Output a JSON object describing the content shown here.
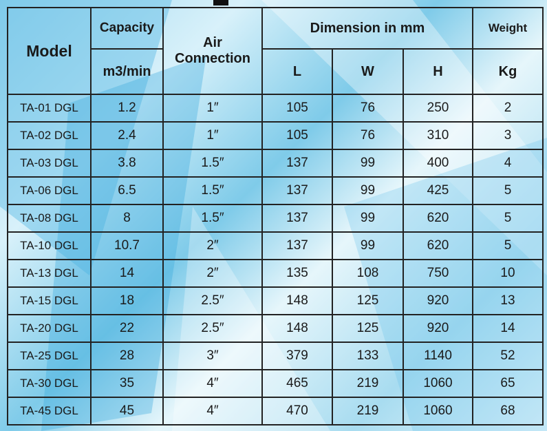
{
  "headers": {
    "model": "Model",
    "capacity": "Capacity",
    "capacity_unit": "m3/min",
    "air": "Air Connection",
    "dimension": "Dimension in mm",
    "l": "L",
    "w": "W",
    "h": "H",
    "weight": "Weight",
    "weight_unit": "Kg"
  },
  "rows": [
    [
      "TA-01 DGL",
      "1.2",
      "1″",
      "105",
      "76",
      "250",
      "2"
    ],
    [
      "TA-02 DGL",
      "2.4",
      "1″",
      "105",
      "76",
      "310",
      "3"
    ],
    [
      "TA-03 DGL",
      "3.8",
      "1.5″",
      "137",
      "99",
      "400",
      "4"
    ],
    [
      "TA-06 DGL",
      "6.5",
      "1.5″",
      "137",
      "99",
      "425",
      "5"
    ],
    [
      "TA-08 DGL",
      "8",
      "1.5″",
      "137",
      "99",
      "620",
      "5"
    ],
    [
      "TA-10 DGL",
      "10.7",
      "2″",
      "137",
      "99",
      "620",
      "5"
    ],
    [
      "TA-13 DGL",
      "14",
      "2″",
      "135",
      "108",
      "750",
      "10"
    ],
    [
      "TA-15 DGL",
      "18",
      "2.5″",
      "148",
      "125",
      "920",
      "13"
    ],
    [
      "TA-20 DGL",
      "22",
      "2.5″",
      "148",
      "125",
      "920",
      "14"
    ],
    [
      "TA-25 DGL",
      "28",
      "3″",
      "379",
      "133",
      "1140",
      "52"
    ],
    [
      "TA-30 DGL",
      "35",
      "4″",
      "465",
      "219",
      "1060",
      "65"
    ],
    [
      "TA-45 DGL",
      "45",
      "4″",
      "470",
      "219",
      "1060",
      "68"
    ]
  ]
}
